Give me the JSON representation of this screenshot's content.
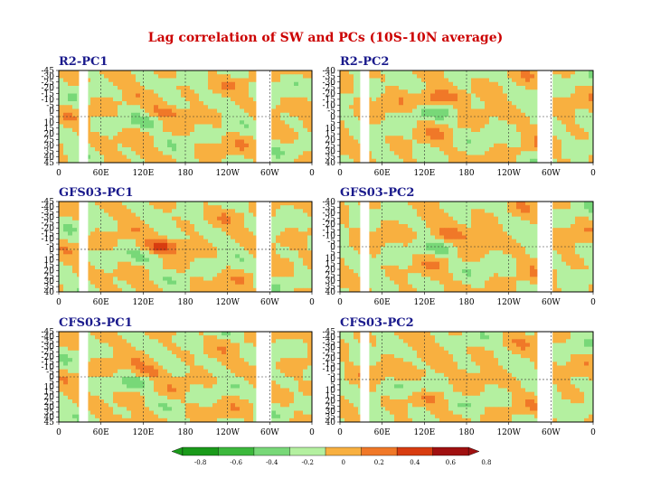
{
  "chart_data": {
    "type": "heatmap",
    "title": "Lag correlation of SW and PCs (10S-10N average)",
    "panels": [
      {
        "name": "R2-PC1",
        "ylabels": [
          "-45",
          "-30",
          "-25",
          "-20",
          "-15",
          "-10",
          "-5",
          "0",
          "5",
          "10",
          "15",
          "20",
          "25",
          "30",
          "35",
          "40",
          "45"
        ],
        "ylim": [
          -45,
          45
        ],
        "hotspot": {
          "lon": 150,
          "lag": -5,
          "value": 0.2
        }
      },
      {
        "name": "R2-PC2",
        "ylabels": [
          "-40",
          "-35",
          "-30",
          "-25",
          "-20",
          "-15",
          "-10",
          "-5",
          "0",
          "5",
          "10",
          "15",
          "20",
          "25",
          "30",
          "35",
          "40"
        ],
        "ylim": [
          -40,
          40
        ],
        "hotspot": {
          "lon": 140,
          "lag": -15,
          "value": 0.3
        }
      },
      {
        "name": "GFS03-PC1",
        "ylabels": [
          "-45",
          "-40",
          "-35",
          "-30",
          "-25",
          "-20",
          "-15",
          "-10",
          "-5",
          "0",
          "5",
          "10",
          "15",
          "20",
          "25",
          "30",
          "35",
          "40"
        ],
        "ylim": [
          -45,
          40
        ],
        "hotspot": {
          "lon": 145,
          "lag": -3,
          "value": 0.4
        }
      },
      {
        "name": "GFS03-PC2",
        "ylabels": [
          "-40",
          "-35",
          "-30",
          "-25",
          "-20",
          "-15",
          "-10",
          "-5",
          "0",
          "5",
          "10",
          "15",
          "20",
          "25",
          "30",
          "35",
          "40"
        ],
        "ylim": [
          -40,
          40
        ],
        "hotspot": {
          "lon": 155,
          "lag": -10,
          "value": 0.3
        }
      },
      {
        "name": "CFS03-PC1",
        "ylabels": [
          "-45",
          "-40",
          "-35",
          "-30",
          "-25",
          "-20",
          "-15",
          "-10",
          "-5",
          "0",
          "5",
          "10",
          "15",
          "20",
          "25",
          "30",
          "35",
          "40",
          "45"
        ],
        "ylim": [
          -45,
          45
        ],
        "hotspot": {
          "lon": 130,
          "lag": -5,
          "value": 0.2
        }
      },
      {
        "name": "CFS03-PC2",
        "ylabels": [
          "-45",
          "-40",
          "-35",
          "-30",
          "-25",
          "-20",
          "-15",
          "-10",
          "-5",
          "0",
          "5",
          "10",
          "15",
          "20",
          "25",
          "30",
          "35",
          "40"
        ],
        "ylim": [
          -45,
          40
        ],
        "hotspot": {
          "lon": 120,
          "lag": -5,
          "value": 0.2
        }
      }
    ],
    "xlabels": [
      "0",
      "60E",
      "120E",
      "180",
      "120W",
      "60W",
      "0"
    ],
    "xlim": [
      0,
      360
    ],
    "colorbar": {
      "labels": [
        "-0.8",
        "-0.6",
        "-0.4",
        "-0.2",
        "0",
        "0.2",
        "0.4",
        "0.6",
        "0.8"
      ],
      "colors": [
        "#1a9a1a",
        "#3cb83c",
        "#78d878",
        "#b4f0a0",
        "#f8b040",
        "#f07828",
        "#d83c10",
        "#a01010"
      ]
    }
  }
}
